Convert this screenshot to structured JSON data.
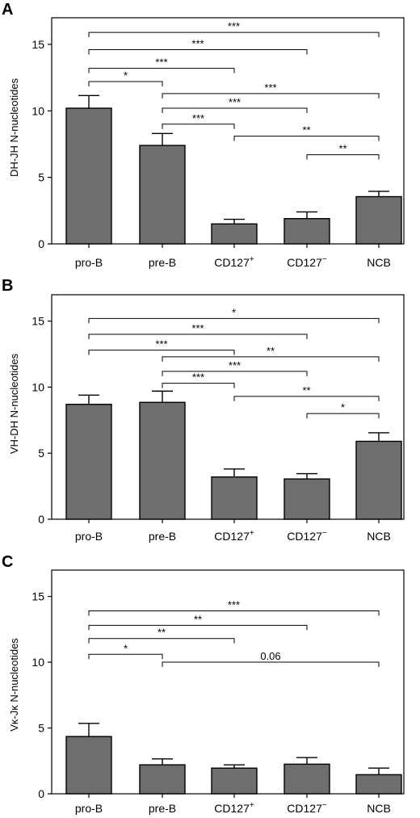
{
  "chart_data": [
    {
      "panel": "A",
      "type": "bar",
      "categories": [
        "pro-B",
        "pre-B",
        "CD127+",
        "CD127-",
        "NCB"
      ],
      "values": [
        10.2,
        7.4,
        1.5,
        1.9,
        3.55
      ],
      "errors": [
        0.95,
        0.9,
        0.35,
        0.5,
        0.4
      ],
      "ylabel": "DH-JH N-nucleotides",
      "ylim": [
        0,
        17
      ],
      "yticks": [
        0,
        5,
        10,
        15
      ],
      "comparisons": [
        {
          "from": 0,
          "to": 4,
          "label": "***",
          "y": 15.9
        },
        {
          "from": 0,
          "to": 3,
          "label": "***",
          "y": 14.6
        },
        {
          "from": 0,
          "to": 2,
          "label": "***",
          "y": 13.2
        },
        {
          "from": 0,
          "to": 1,
          "label": "*",
          "y": 12.2
        },
        {
          "from": 1,
          "to": 4,
          "label": "***",
          "y": 11.3
        },
        {
          "from": 1,
          "to": 3,
          "label": "***",
          "y": 10.2
        },
        {
          "from": 1,
          "to": 2,
          "label": "***",
          "y": 9.0
        },
        {
          "from": 2,
          "to": 4,
          "label": "**",
          "y": 8.1
        },
        {
          "from": 3,
          "to": 4,
          "label": "**",
          "y": 6.7
        }
      ]
    },
    {
      "panel": "B",
      "type": "bar",
      "categories": [
        "pro-B",
        "pre-B",
        "CD127+",
        "CD127-",
        "NCB"
      ],
      "values": [
        8.7,
        8.85,
        3.2,
        3.05,
        5.9
      ],
      "errors": [
        0.7,
        0.85,
        0.6,
        0.4,
        0.65
      ],
      "ylabel": "VH-DH N-nucleotides",
      "ylim": [
        0,
        17
      ],
      "yticks": [
        0,
        5,
        10,
        15
      ],
      "comparisons": [
        {
          "from": 0,
          "to": 4,
          "label": "*",
          "y": 15.2
        },
        {
          "from": 0,
          "to": 3,
          "label": "***",
          "y": 14.0
        },
        {
          "from": 0,
          "to": 2,
          "label": "***",
          "y": 12.8
        },
        {
          "from": 1,
          "to": 4,
          "label": "**",
          "y": 12.3
        },
        {
          "from": 1,
          "to": 3,
          "label": "***",
          "y": 11.2
        },
        {
          "from": 1,
          "to": 2,
          "label": "***",
          "y": 10.3
        },
        {
          "from": 2,
          "to": 4,
          "label": "**",
          "y": 9.3
        },
        {
          "from": 3,
          "to": 4,
          "label": "*",
          "y": 8.0
        }
      ]
    },
    {
      "panel": "C",
      "type": "bar",
      "categories": [
        "pro-B",
        "pre-B",
        "CD127+",
        "CD127-",
        "NCB"
      ],
      "values": [
        4.35,
        2.2,
        1.95,
        2.25,
        1.45
      ],
      "errors": [
        1.0,
        0.45,
        0.25,
        0.5,
        0.5
      ],
      "ylabel": "Vκ-Jκ N-nucleotides",
      "ylim": [
        0,
        17
      ],
      "yticks": [
        0,
        5,
        10,
        15
      ],
      "comparisons": [
        {
          "from": 0,
          "to": 4,
          "label": "***",
          "y": 13.9
        },
        {
          "from": 0,
          "to": 3,
          "label": "**",
          "y": 12.8
        },
        {
          "from": 0,
          "to": 2,
          "label": "**",
          "y": 11.8
        },
        {
          "from": 0,
          "to": 1,
          "label": "*",
          "y": 10.6
        },
        {
          "from": 1,
          "to": 4,
          "label": "0.06",
          "y": 10.0
        }
      ]
    }
  ]
}
